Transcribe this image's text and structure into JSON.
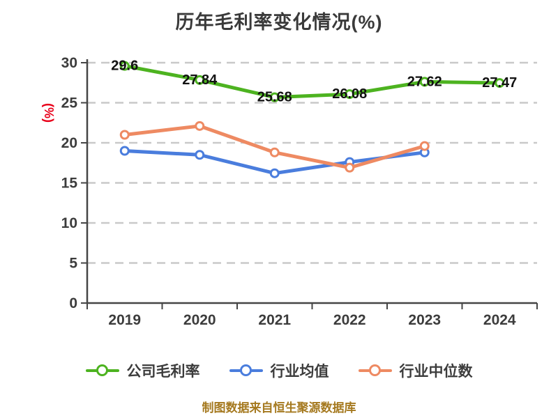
{
  "title": "历年毛利率变化情况(%)",
  "footer": "制图数据来自恒生聚源数据库",
  "chart_data": {
    "type": "line",
    "title": "历年毛利率变化情况(%)",
    "ylabel": "(%)",
    "ylabel_color": "#e8001a",
    "xlabel": "",
    "x_categories": [
      "2019",
      "2020",
      "2021",
      "2022",
      "2023",
      "2024"
    ],
    "y_ticks": [
      0,
      5,
      10,
      15,
      20,
      25,
      30
    ],
    "ylim": [
      0,
      30
    ],
    "grid": "horizontal-dashed",
    "gridline_color": "#c9c9c9",
    "axis_color": "#454545",
    "tick_label_color": "#3c3c3c",
    "data_label_color": "#111111",
    "legend_position": "bottom",
    "series": [
      {
        "name": "公司毛利率",
        "color": "#4db320",
        "values": [
          29.6,
          27.84,
          25.68,
          26.08,
          27.62,
          27.47
        ],
        "show_labels": true
      },
      {
        "name": "行业均值",
        "color": "#4a7ddd",
        "values": [
          19.0,
          18.5,
          16.2,
          17.6,
          18.8
        ],
        "show_labels": false
      },
      {
        "name": "行业中位数",
        "color": "#ee8a62",
        "values": [
          21.0,
          22.1,
          18.8,
          16.9,
          19.6
        ],
        "show_labels": false
      }
    ],
    "footer": "制图数据来自恒生聚源数据库"
  }
}
